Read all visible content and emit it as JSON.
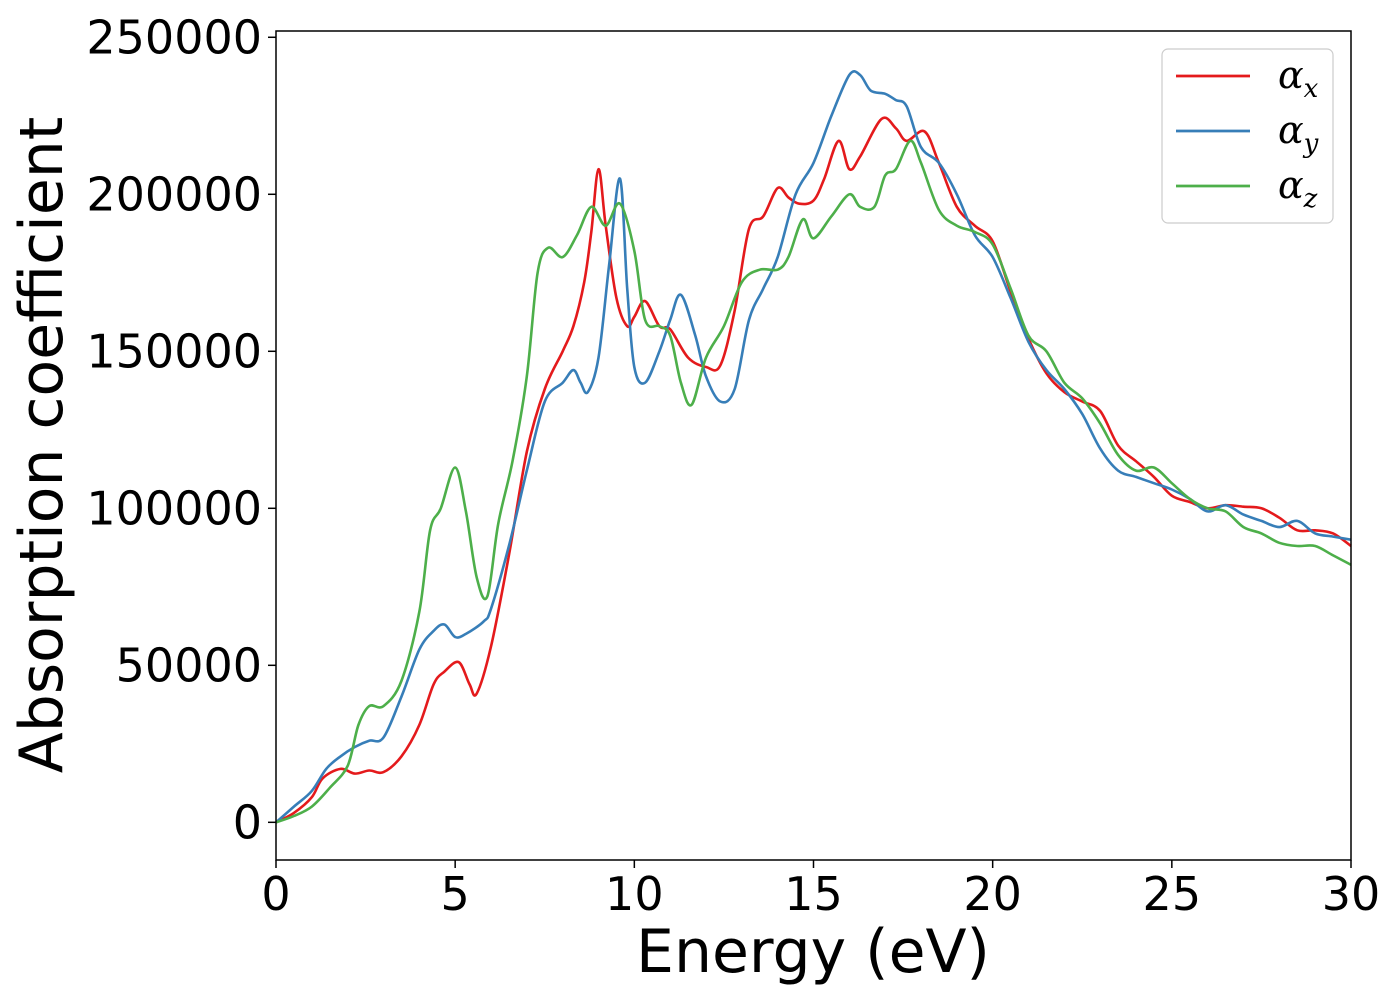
{
  "chart_data": {
    "type": "line",
    "title": "",
    "xlabel": "Energy (eV)",
    "ylabel": "Absorption coefficient",
    "xlim": [
      0,
      30
    ],
    "ylim": [
      -12000,
      252000
    ],
    "xticks": [
      0,
      5,
      10,
      15,
      20,
      25,
      30
    ],
    "yticks": [
      0,
      50000,
      100000,
      150000,
      200000,
      250000
    ],
    "grid": false,
    "legend_position": "top-right",
    "series": [
      {
        "name": "αx",
        "symbol": "α",
        "subscript": "x",
        "color": "#e41a1c",
        "x": [
          0,
          0.5,
          1.0,
          1.3,
          1.8,
          2.2,
          2.6,
          3.0,
          3.5,
          4.0,
          4.4,
          4.7,
          5.1,
          5.4,
          5.6,
          6.0,
          6.5,
          7.0,
          7.5,
          8.0,
          8.3,
          8.6,
          8.8,
          9.0,
          9.2,
          9.5,
          9.8,
          10.0,
          10.3,
          10.7,
          11.0,
          11.5,
          12.0,
          12.4,
          12.8,
          13.2,
          13.6,
          14.0,
          14.3,
          14.6,
          15.0,
          15.3,
          15.7,
          16.0,
          16.3,
          16.9,
          17.3,
          17.6,
          18.1,
          18.5,
          19.0,
          19.5,
          20.0,
          20.5,
          21.0,
          21.5,
          22.0,
          22.5,
          23.0,
          23.5,
          24.0,
          24.5,
          25.0,
          25.5,
          26.0,
          26.5,
          27.0,
          27.5,
          28.0,
          28.5,
          29.0,
          29.5,
          30.0
        ],
        "y": [
          0,
          3000,
          8000,
          14000,
          17000,
          15500,
          16500,
          16000,
          21000,
          31000,
          44000,
          48000,
          51000,
          44000,
          41000,
          56000,
          85000,
          118000,
          138000,
          150000,
          158000,
          172000,
          188000,
          208000,
          190000,
          167000,
          158000,
          161000,
          166000,
          158000,
          157000,
          148000,
          145000,
          145500,
          163000,
          189000,
          193000,
          202000,
          199000,
          197000,
          198000,
          205000,
          217000,
          208000,
          212000,
          224000,
          221000,
          217000,
          220000,
          210000,
          196000,
          190000,
          185000,
          169000,
          154000,
          143000,
          137000,
          134000,
          131000,
          120000,
          115000,
          110000,
          104000,
          102000,
          100000,
          101000,
          100500,
          100000,
          97000,
          93000,
          93000,
          92000,
          88000
        ]
      },
      {
        "name": "αy",
        "symbol": "α",
        "subscript": "y",
        "color": "#377eb8",
        "x": [
          0,
          0.5,
          1.0,
          1.4,
          1.8,
          2.2,
          2.6,
          3.0,
          3.5,
          4.0,
          4.4,
          4.7,
          5.0,
          5.3,
          5.8,
          6.0,
          6.5,
          7.0,
          7.5,
          8.0,
          8.3,
          8.5,
          8.7,
          9.0,
          9.3,
          9.6,
          9.8,
          10.0,
          10.3,
          10.7,
          11.0,
          11.3,
          11.7,
          12.0,
          12.4,
          12.8,
          13.2,
          13.6,
          14.0,
          14.5,
          15.0,
          15.5,
          16.0,
          16.3,
          16.6,
          17.0,
          17.3,
          17.6,
          18.0,
          18.5,
          19.0,
          19.5,
          20.0,
          20.5,
          21.0,
          21.5,
          22.0,
          22.5,
          23.0,
          23.5,
          24.0,
          24.5,
          25.0,
          25.5,
          26.0,
          26.5,
          27.0,
          27.5,
          28.0,
          28.5,
          29.0,
          29.5,
          30.0
        ],
        "y": [
          0,
          5000,
          10000,
          17000,
          21000,
          24000,
          26000,
          27000,
          40000,
          55000,
          61000,
          63000,
          59000,
          60000,
          64000,
          68000,
          88000,
          112000,
          134000,
          140000,
          144000,
          140000,
          137000,
          148000,
          178000,
          205000,
          170000,
          145000,
          140000,
          150000,
          160000,
          168000,
          155000,
          142000,
          134000,
          138000,
          160000,
          170000,
          180000,
          200000,
          210000,
          225000,
          238000,
          238000,
          233000,
          232000,
          230000,
          228000,
          215000,
          210000,
          200000,
          187000,
          180000,
          167000,
          153000,
          144000,
          138000,
          130000,
          119000,
          112000,
          110000,
          108000,
          106000,
          103000,
          99000,
          101000,
          98000,
          96000,
          94000,
          96000,
          92000,
          91000,
          90000
        ]
      },
      {
        "name": "αz",
        "symbol": "α",
        "subscript": "z",
        "color": "#4daf4a",
        "x": [
          0,
          0.5,
          1.0,
          1.5,
          2.0,
          2.3,
          2.6,
          3.0,
          3.5,
          4.0,
          4.3,
          4.6,
          5.0,
          5.3,
          5.6,
          5.9,
          6.2,
          6.6,
          7.0,
          7.3,
          7.6,
          8.0,
          8.4,
          8.8,
          9.2,
          9.6,
          10.0,
          10.3,
          10.7,
          11.0,
          11.3,
          11.6,
          12.0,
          12.5,
          13.0,
          13.5,
          14.0,
          14.3,
          14.7,
          15.0,
          15.5,
          16.0,
          16.3,
          16.7,
          17.0,
          17.3,
          17.7,
          18.0,
          18.5,
          19.0,
          19.5,
          20.0,
          20.5,
          21.0,
          21.5,
          22.0,
          22.5,
          23.0,
          23.5,
          24.0,
          24.5,
          25.0,
          25.5,
          26.0,
          26.5,
          27.0,
          27.5,
          28.0,
          28.5,
          29.0,
          29.5,
          30.0
        ],
        "y": [
          0,
          2000,
          5000,
          11000,
          18000,
          31000,
          37000,
          37000,
          45000,
          67000,
          93000,
          100000,
          113000,
          99000,
          78000,
          72000,
          95000,
          115000,
          142000,
          175000,
          183000,
          180000,
          187000,
          196000,
          190000,
          197000,
          182000,
          160000,
          158000,
          155000,
          140000,
          133000,
          148000,
          158000,
          172000,
          176000,
          176000,
          180000,
          192000,
          186000,
          193000,
          200000,
          196000,
          196000,
          206000,
          208000,
          217000,
          210000,
          195000,
          190000,
          188000,
          184000,
          170000,
          155000,
          150000,
          140000,
          135000,
          127000,
          117000,
          112000,
          113000,
          108000,
          103000,
          100000,
          99000,
          94000,
          92000,
          89000,
          88000,
          88000,
          85000,
          82000
        ]
      }
    ]
  }
}
